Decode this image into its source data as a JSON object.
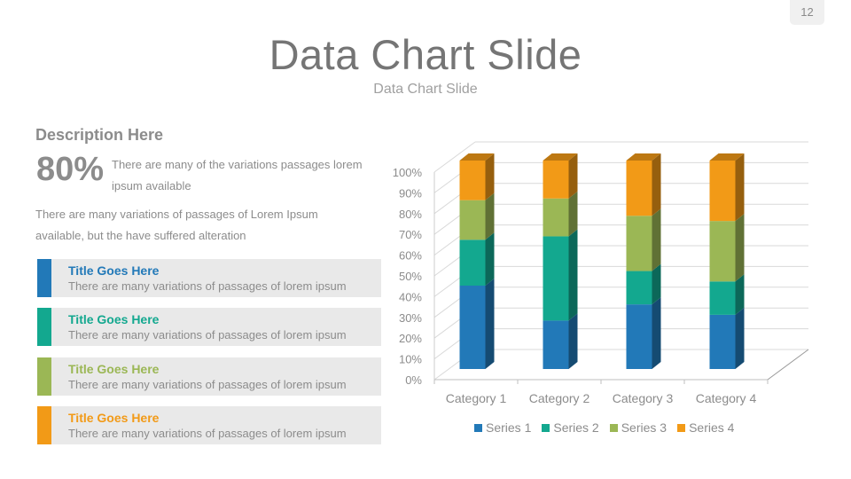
{
  "page_number": "12",
  "header": {
    "title": "Data Chart Slide",
    "subtitle": "Data Chart Slide"
  },
  "left": {
    "heading": "Description Here",
    "stat_value": "80%",
    "stat_text": "There are many of the variations passages lorem ipsum available",
    "paragraph": "There are many variations of passages  of Lorem Ipsum available, but the have suffered alteration",
    "items": [
      {
        "title": "Title Goes Here",
        "text": "There are many variations of passages of lorem ipsum",
        "color": "#2279b8"
      },
      {
        "title": "Title Goes Here",
        "text": "There are many variations of passages of lorem ipsum",
        "color": "#13a88f"
      },
      {
        "title": "Title Goes Here",
        "text": "There are many variations of passages of lorem ipsum",
        "color": "#9bb755"
      },
      {
        "title": "Title Goes Here",
        "text": "There are many variations of passages of lorem ipsum",
        "color": "#f29a17"
      }
    ]
  },
  "chart_data": {
    "type": "bar",
    "subtype": "3d-stacked-percent",
    "title": "",
    "xlabel": "",
    "ylabel": "",
    "categories": [
      "Category 1",
      "Category 2",
      "Category 3",
      "Category 4"
    ],
    "series": [
      {
        "name": "Series 1",
        "color": "#2279b8",
        "values": [
          40,
          23,
          31,
          26
        ]
      },
      {
        "name": "Series 2",
        "color": "#13a88f",
        "values": [
          22,
          40,
          16,
          16
        ]
      },
      {
        "name": "Series 3",
        "color": "#9bb755",
        "values": [
          19,
          18,
          26.5,
          29
        ]
      },
      {
        "name": "Series 4",
        "color": "#f29a17",
        "values": [
          19,
          18,
          26.5,
          29
        ]
      }
    ],
    "yticks": [
      "0%",
      "10%",
      "20%",
      "30%",
      "40%",
      "50%",
      "60%",
      "70%",
      "80%",
      "90%",
      "100%"
    ],
    "ylim": [
      0,
      100
    ],
    "grid": true,
    "legend_position": "bottom"
  }
}
